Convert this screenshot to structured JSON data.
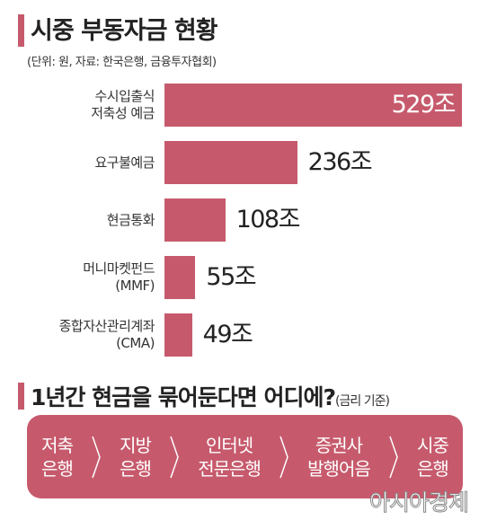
{
  "chart_data": {
    "type": "hbar",
    "title": "시중 부동자금 현황",
    "subtitle": "(단위: 원, 자료: 한국은행, 금융투자협회)",
    "categories": [
      "수시입출식\n저축성 예금",
      "요구불예금",
      "현금통화",
      "머니마켓펀드\n(MMF)",
      "종합자산관리계좌\n(CMA)"
    ],
    "values": [
      529,
      236,
      108,
      55,
      49
    ],
    "value_labels": [
      "529조",
      "236조",
      "108조",
      "55조",
      "49조"
    ],
    "color": "#c65a6c"
  },
  "ranking": {
    "title": "1년간 현금을 묶어둔다면 어디에?",
    "note": "(금리 기준)",
    "items": [
      "저축\n은행",
      "지방\n은행",
      "인터넷\n전문은행",
      "증권사\n발행어음",
      "시중\n은행"
    ]
  },
  "watermark": "아시아경제"
}
